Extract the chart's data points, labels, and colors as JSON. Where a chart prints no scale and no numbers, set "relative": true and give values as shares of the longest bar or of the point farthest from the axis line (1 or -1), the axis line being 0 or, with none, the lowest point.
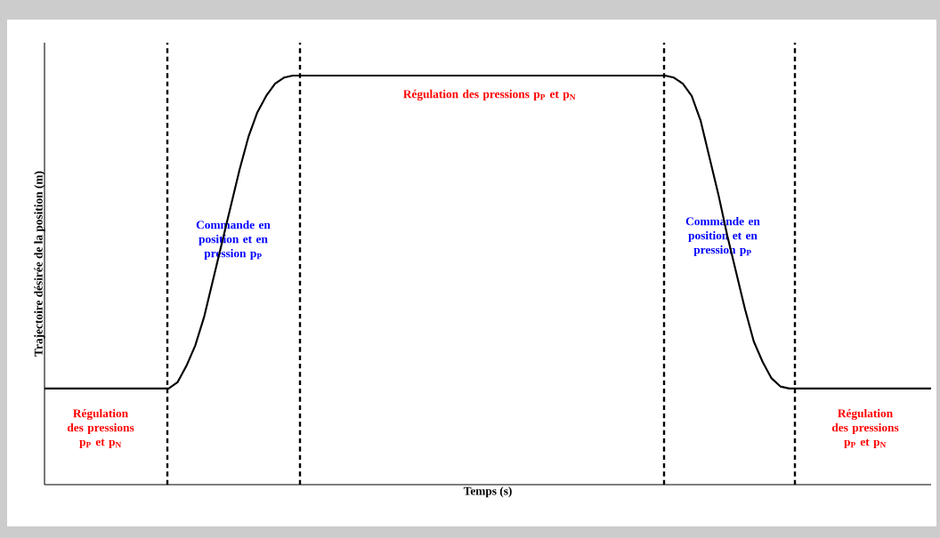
{
  "chart_data": {
    "type": "line",
    "relative": true,
    "xlabel": "Temps (s)",
    "ylabel": "Trajectoire désirée de la position (m)",
    "categories": [
      null,
      null,
      null,
      null,
      null,
      null,
      null,
      null,
      null,
      null,
      null,
      null,
      null,
      null,
      null,
      null,
      null,
      null,
      null,
      null,
      null,
      null,
      null,
      null,
      null,
      null,
      null,
      null,
      null,
      null,
      null,
      null,
      null,
      null,
      null,
      null,
      null,
      null,
      null,
      null,
      null,
      null,
      null,
      null,
      null,
      null,
      null,
      null,
      null,
      null,
      null,
      null,
      null,
      null,
      null,
      null,
      null,
      null,
      null,
      null,
      null,
      null,
      null,
      null,
      null,
      null,
      null,
      null,
      null,
      null,
      null,
      null,
      null,
      null,
      null,
      null,
      null,
      null,
      null,
      null,
      null,
      null,
      null,
      null,
      null,
      null,
      null,
      null,
      null,
      null,
      null,
      null,
      null,
      null,
      null,
      null,
      null,
      null,
      null,
      null,
      null
    ],
    "series": [
      {
        "color": "#000000",
        "values": [
          0.235,
          0.235,
          0.235,
          0.235,
          0.235,
          0.235,
          0.235,
          0.235,
          0.235,
          0.235,
          0.235,
          0.235,
          0.235,
          0.235,
          0.235,
          0.25,
          0.29,
          0.34,
          0.41,
          0.5,
          0.59,
          0.68,
          0.77,
          0.85,
          0.91,
          0.95,
          0.98,
          0.995,
          1,
          1,
          1,
          1,
          1,
          1,
          1,
          1,
          1,
          1,
          1,
          1,
          1,
          1,
          1,
          1,
          1,
          1,
          1,
          1,
          1,
          1,
          1,
          1,
          1,
          1,
          1,
          1,
          1,
          1,
          1,
          1,
          1,
          1,
          1,
          1,
          1,
          1,
          1,
          1,
          1,
          1,
          1,
          0.995,
          0.98,
          0.95,
          0.89,
          0.8,
          0.71,
          0.61,
          0.52,
          0.43,
          0.35,
          0.3,
          0.26,
          0.24,
          0.235,
          0.235,
          0.235,
          0.235,
          0.235,
          0.235,
          0.235,
          0.235,
          0.235,
          0.235,
          0.235,
          0.235,
          0.235,
          0.235,
          0.235,
          0.235,
          0.235
        ]
      }
    ],
    "annotations": [
      "Régulation des pressions p$_{P}$ et p$_{N}$",
      "Commande en position et en pression p$_{P}$",
      "Régulation  des pressions p$_{P}$ et p$_{N}$",
      "Commande en position et en pression p$_{P}$",
      "Régulation des pressions p$_{P}$ et p$_{N}$"
    ],
    "line_style": "solid",
    "marker": "none"
  }
}
